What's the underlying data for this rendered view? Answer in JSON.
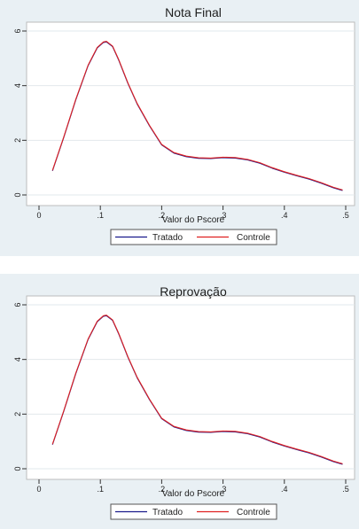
{
  "chart_data": [
    {
      "type": "line",
      "title": "Nota Final",
      "xlabel": "Valor do Pscore",
      "ylabel": "",
      "xlim": [
        0,
        0.5
      ],
      "ylim": [
        0,
        6
      ],
      "xticks": [
        0,
        0.1,
        0.2,
        0.3,
        0.4,
        0.5
      ],
      "xtick_labels": [
        "0",
        ".1",
        ".2",
        ".3",
        ".4",
        ".5"
      ],
      "yticks": [
        0,
        2,
        4,
        6
      ],
      "ytick_labels": [
        "0",
        "2",
        "4",
        "6"
      ],
      "grid": "horizontal",
      "legend_position": "bottom",
      "series": [
        {
          "name": "Tratado",
          "color": "#1a1a8c",
          "x": [
            0.022,
            0.04,
            0.06,
            0.08,
            0.095,
            0.105,
            0.11,
            0.12,
            0.13,
            0.145,
            0.16,
            0.18,
            0.2,
            0.22,
            0.24,
            0.26,
            0.28,
            0.3,
            0.32,
            0.34,
            0.36,
            0.38,
            0.4,
            0.42,
            0.44,
            0.46,
            0.48,
            0.495
          ],
          "y": [
            0.9,
            2.1,
            3.5,
            4.75,
            5.4,
            5.6,
            5.62,
            5.45,
            4.95,
            4.1,
            3.35,
            2.55,
            1.85,
            1.55,
            1.42,
            1.36,
            1.35,
            1.38,
            1.37,
            1.3,
            1.18,
            1.0,
            0.85,
            0.72,
            0.6,
            0.45,
            0.28,
            0.18
          ]
        },
        {
          "name": "Controle",
          "color": "#e02020",
          "x": [
            0.022,
            0.04,
            0.06,
            0.08,
            0.095,
            0.105,
            0.11,
            0.12,
            0.13,
            0.145,
            0.16,
            0.18,
            0.2,
            0.22,
            0.24,
            0.26,
            0.28,
            0.3,
            0.32,
            0.34,
            0.36,
            0.38,
            0.4,
            0.42,
            0.44,
            0.46,
            0.48,
            0.495
          ],
          "y": [
            0.9,
            2.1,
            3.5,
            4.75,
            5.4,
            5.6,
            5.62,
            5.45,
            4.95,
            4.1,
            3.35,
            2.55,
            1.85,
            1.55,
            1.42,
            1.36,
            1.35,
            1.38,
            1.37,
            1.3,
            1.18,
            1.0,
            0.85,
            0.72,
            0.6,
            0.45,
            0.28,
            0.18
          ]
        }
      ]
    },
    {
      "type": "line",
      "title": "Reprovação",
      "xlabel": "Valor do Pscore",
      "ylabel": "",
      "xlim": [
        0,
        0.5
      ],
      "ylim": [
        0,
        6
      ],
      "xticks": [
        0,
        0.1,
        0.2,
        0.3,
        0.4,
        0.5
      ],
      "xtick_labels": [
        "0",
        ".1",
        ".2",
        ".3",
        ".4",
        ".5"
      ],
      "yticks": [
        0,
        2,
        4,
        6
      ],
      "ytick_labels": [
        "0",
        "2",
        "4",
        "6"
      ],
      "grid": "horizontal",
      "legend_position": "bottom",
      "series": [
        {
          "name": "Tratado",
          "color": "#1a1a8c",
          "x": [
            0.022,
            0.04,
            0.06,
            0.08,
            0.095,
            0.105,
            0.11,
            0.12,
            0.13,
            0.145,
            0.16,
            0.18,
            0.2,
            0.22,
            0.24,
            0.26,
            0.28,
            0.3,
            0.32,
            0.34,
            0.36,
            0.38,
            0.4,
            0.42,
            0.44,
            0.46,
            0.48,
            0.495
          ],
          "y": [
            0.9,
            2.1,
            3.5,
            4.75,
            5.4,
            5.6,
            5.62,
            5.45,
            4.95,
            4.1,
            3.35,
            2.55,
            1.85,
            1.55,
            1.42,
            1.36,
            1.35,
            1.38,
            1.37,
            1.3,
            1.18,
            1.0,
            0.85,
            0.72,
            0.6,
            0.45,
            0.28,
            0.18
          ]
        },
        {
          "name": "Controle",
          "color": "#e02020",
          "x": [
            0.022,
            0.04,
            0.06,
            0.08,
            0.095,
            0.105,
            0.11,
            0.12,
            0.13,
            0.145,
            0.16,
            0.18,
            0.2,
            0.22,
            0.24,
            0.26,
            0.28,
            0.3,
            0.32,
            0.34,
            0.36,
            0.38,
            0.4,
            0.42,
            0.44,
            0.46,
            0.48,
            0.495
          ],
          "y": [
            0.9,
            2.1,
            3.5,
            4.75,
            5.4,
            5.6,
            5.62,
            5.45,
            4.95,
            4.1,
            3.35,
            2.55,
            1.85,
            1.55,
            1.42,
            1.36,
            1.35,
            1.38,
            1.37,
            1.3,
            1.18,
            1.0,
            0.85,
            0.72,
            0.6,
            0.45,
            0.28,
            0.18
          ]
        }
      ]
    }
  ]
}
